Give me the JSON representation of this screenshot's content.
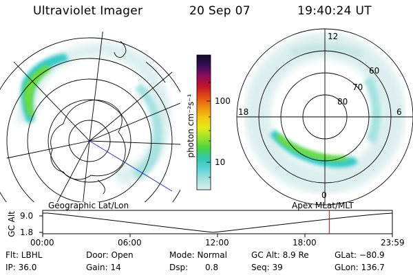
{
  "title": {
    "instrument": "Ultraviolet Imager",
    "date": "20 Sep 07",
    "time": "19:40:24 UT"
  },
  "colors": {
    "background": "#ffffff",
    "aurora_low": "#c9e6e2",
    "aurora_mid": "#35c9c8",
    "aurora_high": "#6ddc3a",
    "track_line": "#000000",
    "current_time_marker": "#cc0000",
    "sun_direction_line": "#2233cc"
  },
  "geographic_panel": {
    "label": "Geographic Lat/Lon"
  },
  "apex_panel": {
    "label": "Apex MLat/MLT",
    "mlt_labels": {
      "top": "12",
      "bottom": "0",
      "left": "18",
      "right": "6"
    },
    "mlat_labels": [
      "60",
      "70",
      "80"
    ]
  },
  "colorbar": {
    "unit_label": "photon cm⁻²s⁻¹",
    "tick_labels": [
      "100",
      "10"
    ],
    "stops": [
      "#0b0b2a",
      "#3a0c5a",
      "#8a0d5e",
      "#c5102a",
      "#e24a12",
      "#f08a10",
      "#f4c60e",
      "#e4ea18",
      "#9be22c",
      "#48d63e",
      "#30c8b6",
      "#5cd6d8",
      "#a6e2e0",
      "#dcefee"
    ]
  },
  "altitude_track": {
    "y_label": "GC Alt",
    "y_ticks": [
      "9.0",
      "1.8"
    ],
    "x_ticks": [
      "00:00",
      "06:00",
      "12:00",
      "18:00",
      "23:59"
    ],
    "current_time_hours": 19.67
  },
  "info": {
    "row1": {
      "filter": "Flt: LBHL",
      "door": "Door: Open",
      "mode": "Mode: Normal",
      "gc_alt": "GC Alt: 8.9 Re",
      "glat": "GLat: −80.9"
    },
    "row2": {
      "ip": "IP: 36.0",
      "gain": "Gain: 14",
      "dsp_label": "Dsp:",
      "dsp_value": "0.8",
      "seq": "Seq: 39",
      "glon": "GLon: 136.7"
    }
  }
}
